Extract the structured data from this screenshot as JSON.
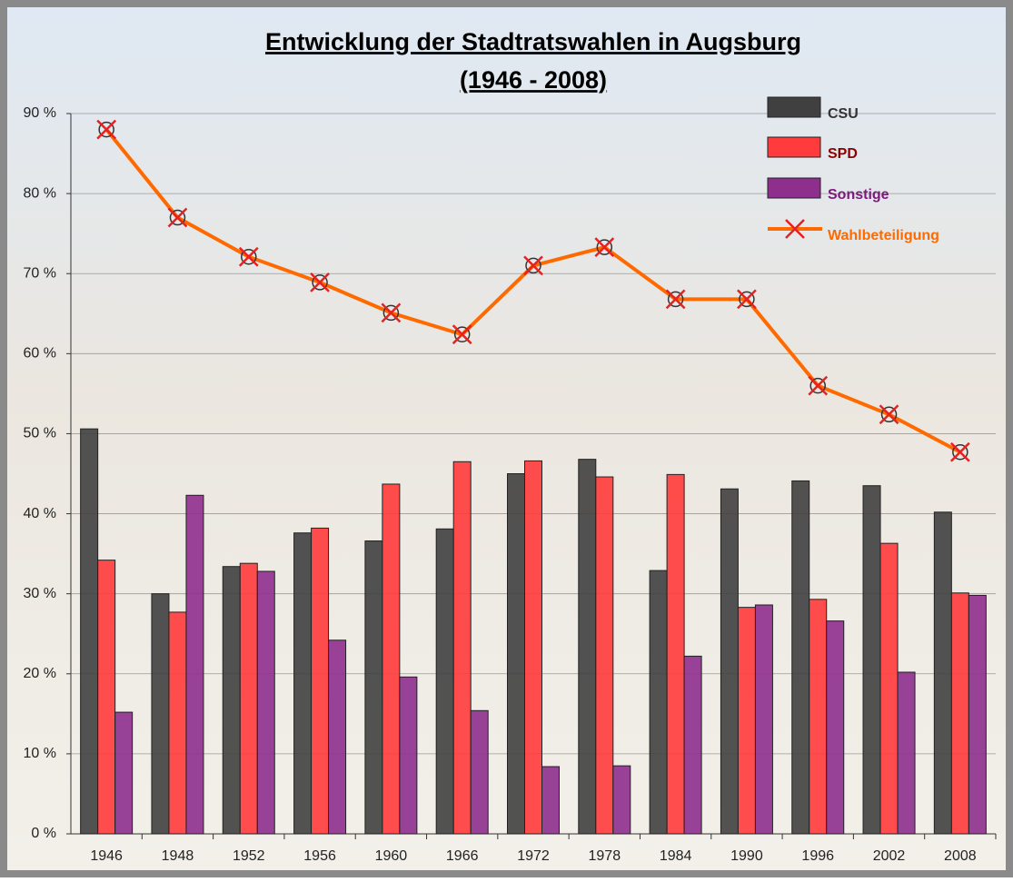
{
  "chart_data": {
    "type": "bar",
    "title": "Entwicklung der Stadtratswahlen in Augsburg",
    "subtitle": "(1946 - 2008)",
    "categories": [
      "1946",
      "1948",
      "1952",
      "1956",
      "1960",
      "1966",
      "1972",
      "1978",
      "1984",
      "1990",
      "1996",
      "2002",
      "2008"
    ],
    "series": [
      {
        "name": "CSU",
        "color": "#404040",
        "values": [
          50.6,
          30.0,
          33.4,
          37.6,
          36.6,
          38.1,
          45.0,
          46.8,
          32.9,
          43.1,
          44.1,
          43.5,
          40.2
        ]
      },
      {
        "name": "SPD",
        "color": "#ff3b3b",
        "values": [
          34.2,
          27.7,
          33.8,
          38.2,
          43.7,
          46.5,
          46.6,
          44.6,
          44.9,
          28.3,
          29.3,
          36.3,
          30.1
        ]
      },
      {
        "name": "Sonstige",
        "color": "#8e2f8e",
        "values": [
          15.2,
          42.3,
          32.8,
          24.2,
          19.6,
          15.4,
          8.4,
          8.5,
          22.2,
          28.6,
          26.6,
          20.2,
          29.8
        ]
      },
      {
        "name": "Wahlbeteiligung",
        "type": "line",
        "color": "#ff6a00",
        "values": [
          88.0,
          77.0,
          72.1,
          68.9,
          65.1,
          62.4,
          71.0,
          73.3,
          66.8,
          66.8,
          56.0,
          52.4,
          47.7
        ]
      }
    ],
    "ylim": [
      0,
      90
    ],
    "yticks": [
      {
        "value": 0,
        "label": "0 %"
      },
      {
        "value": 10,
        "label": "10 %"
      },
      {
        "value": 20,
        "label": "20 %"
      },
      {
        "value": 30,
        "label": "30 %"
      },
      {
        "value": 40,
        "label": "40 %"
      },
      {
        "value": 50,
        "label": "50 %"
      },
      {
        "value": 60,
        "label": "60 %"
      },
      {
        "value": 70,
        "label": "70 %"
      },
      {
        "value": 80,
        "label": "80 %"
      },
      {
        "value": 90,
        "label": "90 %"
      }
    ],
    "grid": true,
    "legend": "top-right"
  }
}
